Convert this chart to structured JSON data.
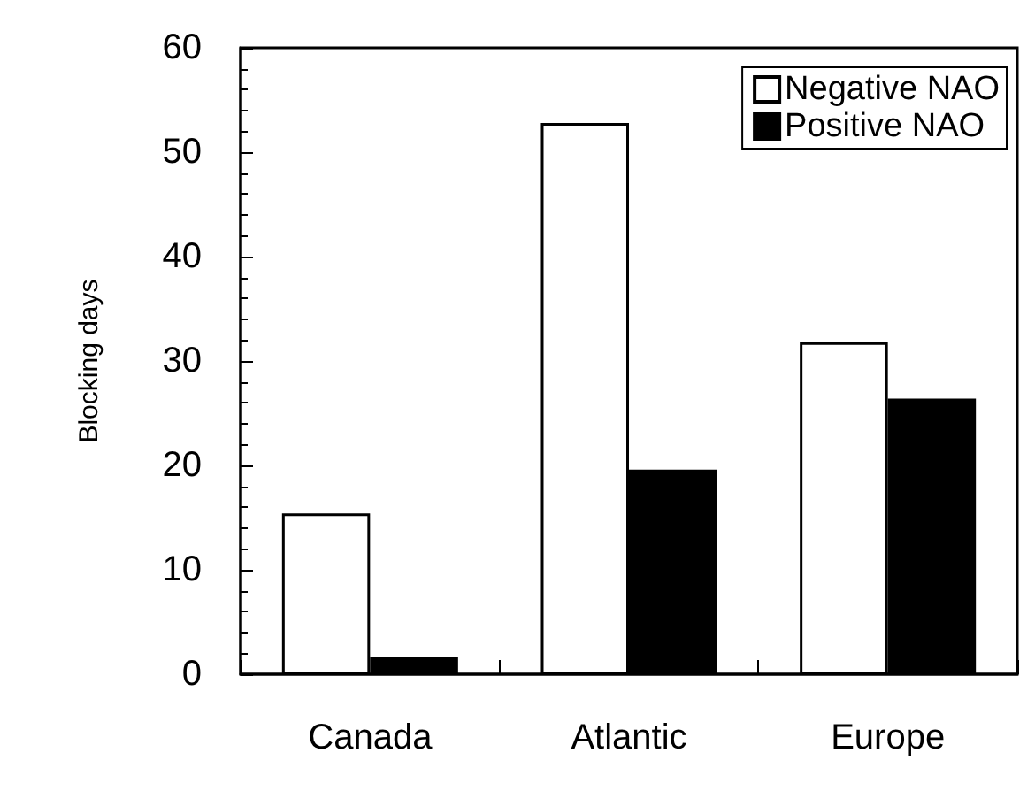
{
  "chart_data": {
    "type": "bar",
    "ylabel": "Blocking days",
    "categories": [
      "Canada",
      "Atlantic",
      "Europe"
    ],
    "series": [
      {
        "name": "Negative NAO",
        "color": "#ffffff",
        "values": [
          15.4,
          52.8,
          31.8
        ]
      },
      {
        "name": "Positive NAO",
        "color": "#000000",
        "values": [
          1.7,
          19.6,
          26.4
        ]
      }
    ],
    "ylim": [
      0,
      60
    ],
    "yticks": [
      0,
      10,
      20,
      30,
      40,
      50,
      60
    ],
    "grid": false,
    "legend": "top right"
  }
}
